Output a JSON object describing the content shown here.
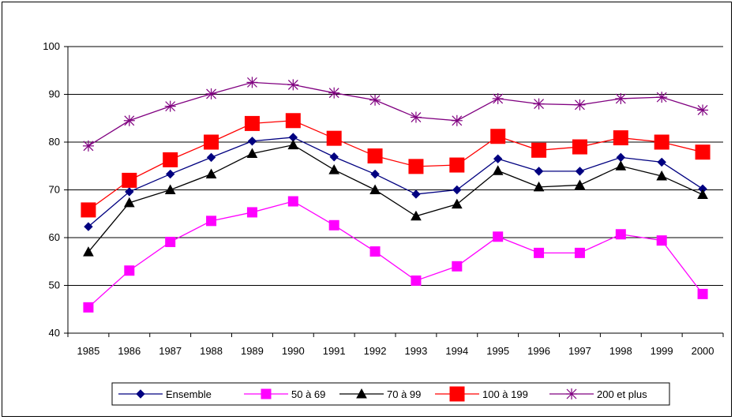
{
  "chart_data": {
    "type": "line",
    "title": "",
    "xlabel": "",
    "ylabel": "",
    "x": [
      "1985",
      "1986",
      "1987",
      "1988",
      "1989",
      "1990",
      "1991",
      "1992",
      "1993",
      "1994",
      "1995",
      "1996",
      "1997",
      "1998",
      "1999",
      "2000"
    ],
    "ylim": [
      40,
      100
    ],
    "yticks": [
      40,
      50,
      60,
      70,
      80,
      90,
      100
    ],
    "grid": "horizontal",
    "legend_position": "bottom",
    "series": [
      {
        "name": "Ensemble",
        "color": "#000080",
        "marker": "diamond",
        "values": [
          62.3,
          69.6,
          73.3,
          76.8,
          80.2,
          81.0,
          76.9,
          73.3,
          69.1,
          70.0,
          76.5,
          73.9,
          73.9,
          76.8,
          75.8,
          70.2
        ]
      },
      {
        "name": "50 à 69",
        "color": "#ff00ff",
        "marker": "square",
        "values": [
          45.4,
          53.1,
          59.1,
          63.5,
          65.3,
          67.6,
          62.6,
          57.1,
          51.0,
          54.0,
          60.2,
          56.8,
          56.8,
          60.7,
          59.4,
          48.2
        ]
      },
      {
        "name": "70 à 99",
        "color": "#000000",
        "marker": "triangle",
        "values": [
          57.0,
          67.3,
          70.0,
          73.3,
          77.6,
          79.4,
          74.2,
          70.0,
          64.5,
          67.0,
          74.0,
          70.6,
          71.0,
          75.0,
          72.9,
          69.0
        ]
      },
      {
        "name": "100 à 199",
        "color": "#ff0000",
        "marker": "bigsquare",
        "values": [
          65.8,
          72.0,
          76.3,
          80.0,
          83.9,
          84.5,
          80.8,
          77.1,
          74.9,
          75.2,
          81.2,
          78.3,
          79.0,
          80.9,
          80.0,
          77.9
        ]
      },
      {
        "name": "200 et plus",
        "color": "#800080",
        "marker": "star",
        "values": [
          79.2,
          84.5,
          87.5,
          90.1,
          92.5,
          92.0,
          90.3,
          88.8,
          85.2,
          84.5,
          89.1,
          88.0,
          87.8,
          89.1,
          89.4,
          86.7
        ]
      }
    ]
  }
}
